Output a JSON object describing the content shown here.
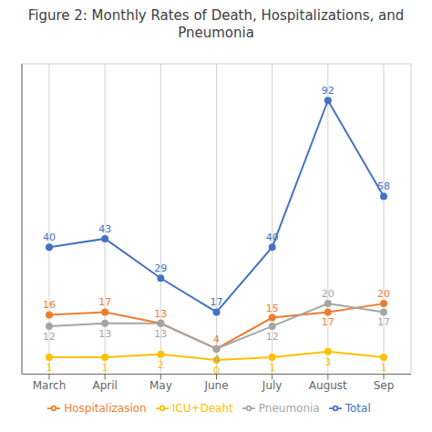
{
  "chart_data": {
    "type": "line",
    "title": "Figure 2: Monthly Rates of Death, Hospitalizations, and\nPneumonia",
    "categories": [
      "March",
      "April",
      "May",
      "June",
      "July",
      "August",
      "Sep"
    ],
    "series": [
      {
        "name": "Total",
        "color": "#4472C4",
        "values": [
          40,
          43,
          29,
          17,
          40,
          92,
          58
        ]
      },
      {
        "name": "Hospitalizasion",
        "color": "#ED7D31",
        "values": [
          16,
          17,
          13,
          4,
          15,
          17,
          20
        ]
      },
      {
        "name": "Pneumonia",
        "color": "#A5A5A5",
        "values": [
          12,
          13,
          13,
          4,
          12,
          20,
          17
        ]
      },
      {
        "name": "ICU+Deaht",
        "color": "#FFC000",
        "values": [
          1,
          1,
          2,
          0,
          1,
          3,
          1
        ]
      }
    ],
    "ylim": [
      -5,
      105
    ],
    "yticks": [
      0,
      20,
      40,
      60,
      80,
      100
    ],
    "grid": true,
    "legend": "bottom",
    "data_labels": true,
    "tick_labels": "x",
    "marker": "circle"
  }
}
